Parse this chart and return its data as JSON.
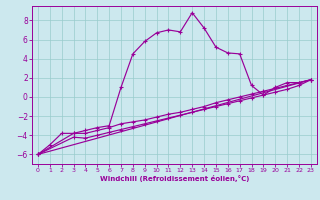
{
  "xlabel": "Windchill (Refroidissement éolien,°C)",
  "bg_color": "#cce8ee",
  "line_color": "#990099",
  "grid_color": "#99cccc",
  "xlim": [
    -0.5,
    23.5
  ],
  "ylim": [
    -7.0,
    9.5
  ],
  "xticks": [
    0,
    1,
    2,
    3,
    4,
    5,
    6,
    7,
    8,
    9,
    10,
    11,
    12,
    13,
    14,
    15,
    16,
    17,
    18,
    19,
    20,
    21,
    22,
    23
  ],
  "yticks": [
    -6,
    -4,
    -2,
    0,
    2,
    4,
    6,
    8
  ],
  "line1_x": [
    0,
    1,
    2,
    3,
    4,
    5,
    6,
    7,
    8,
    9,
    10,
    11,
    12,
    13,
    14,
    15,
    16,
    17,
    18,
    19,
    20,
    21,
    22,
    23
  ],
  "line1_y": [
    -6.0,
    -5.0,
    -3.8,
    -3.8,
    -3.5,
    -3.2,
    -3.0,
    1.0,
    4.5,
    5.8,
    6.7,
    7.0,
    6.8,
    8.8,
    7.2,
    5.2,
    4.6,
    4.5,
    1.2,
    0.2,
    1.0,
    1.5,
    1.5,
    1.8
  ],
  "line2_x": [
    0,
    3,
    4,
    5,
    6,
    7,
    8,
    9,
    10,
    11,
    12,
    13,
    14,
    15,
    16,
    17,
    18,
    19,
    20,
    21,
    22,
    23
  ],
  "line2_y": [
    -6.0,
    -3.8,
    -3.8,
    -3.5,
    -3.2,
    -2.8,
    -2.6,
    -2.4,
    -2.1,
    -1.8,
    -1.6,
    -1.3,
    -1.0,
    -0.6,
    -0.3,
    0.0,
    0.3,
    0.6,
    0.9,
    1.2,
    1.5,
    1.8
  ],
  "line3_x": [
    0,
    3,
    4,
    5,
    6,
    7,
    8,
    9,
    10,
    11,
    12,
    13,
    14,
    15,
    16,
    17,
    18,
    19,
    20,
    21,
    22,
    23
  ],
  "line3_y": [
    -6.0,
    -4.2,
    -4.3,
    -4.0,
    -3.7,
    -3.4,
    -3.1,
    -2.8,
    -2.5,
    -2.2,
    -1.9,
    -1.6,
    -1.3,
    -1.0,
    -0.7,
    -0.4,
    -0.1,
    0.2,
    0.5,
    0.8,
    1.2,
    1.8
  ],
  "line4_x": [
    0,
    23
  ],
  "line4_y": [
    -6.0,
    1.8
  ]
}
